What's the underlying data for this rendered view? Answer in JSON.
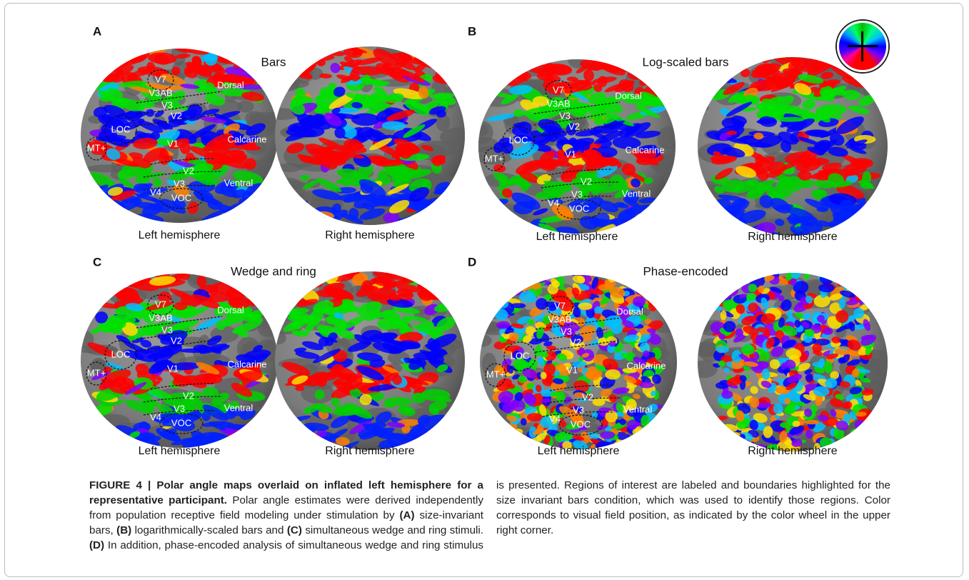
{
  "figure": {
    "panels": [
      {
        "letter": "A",
        "title": "Bars",
        "left_label": "Left hemisphere",
        "right_label": "Right hemisphere",
        "regions": [
          "V7",
          "V3AB",
          "Dorsal",
          "V3",
          "V2",
          "LOC",
          "Calcarine",
          "MT+",
          "V1",
          "V2",
          "Ventral",
          "V3",
          "V4",
          "VOC"
        ]
      },
      {
        "letter": "B",
        "title": "Log-scaled bars",
        "left_label": "Left hemisphere",
        "right_label": "Right hemisphere",
        "regions": [
          "V7",
          "V3AB",
          "Dorsal",
          "V3",
          "V2",
          "LOC",
          "Calcarine",
          "MT+",
          "V1",
          "V2",
          "Ventral",
          "V3",
          "V4",
          "VOC"
        ]
      },
      {
        "letter": "C",
        "title": "Wedge and ring",
        "left_label": "Left hemisphere",
        "right_label": "Right hemisphere",
        "regions": [
          "V7",
          "V3AB",
          "Dorsal",
          "V3",
          "V2",
          "LOC",
          "Calcarine",
          "MT+",
          "V1",
          "V2",
          "Ventral",
          "V3",
          "V4",
          "VOC"
        ]
      },
      {
        "letter": "D",
        "title": "Phase-encoded",
        "left_label": "Left hemisphere",
        "right_label": "Right hemisphere",
        "regions": [
          "V7",
          "V3AB",
          "Dorsal",
          "V3",
          "V2",
          "LOC",
          "Calcarine",
          "MT+",
          "V1",
          "V2",
          "Ventral",
          "V3",
          "V4",
          "VOC"
        ]
      }
    ]
  },
  "caption": {
    "segments": [
      {
        "text": "FIGURE 4 | Polar angle maps overlaid on inflated left hemisphere for a representative participant.",
        "bold": true
      },
      {
        "text": " Polar angle estimates were derived independently from population receptive field modeling under stimulation by ",
        "bold": false
      },
      {
        "text": "(A)",
        "bold": true
      },
      {
        "text": " size-invariant bars, ",
        "bold": false
      },
      {
        "text": "(B)",
        "bold": true
      },
      {
        "text": " logarithmically-scaled bars and ",
        "bold": false
      },
      {
        "text": "(C)",
        "bold": true
      },
      {
        "text": " simultaneous wedge and ring stimuli. ",
        "bold": false
      },
      {
        "text": "(D)",
        "bold": true
      },
      {
        "text": " In addition, phase-encoded analysis of simultaneous wedge and ring stimulus is presented. Regions of interest are labeled and boundaries highlighted for the size invariant bars condition, which was used to identify those regions. Color corresponds to visual field position, as indicated by the color wheel in the upper right corner.",
        "bold": false
      }
    ]
  }
}
